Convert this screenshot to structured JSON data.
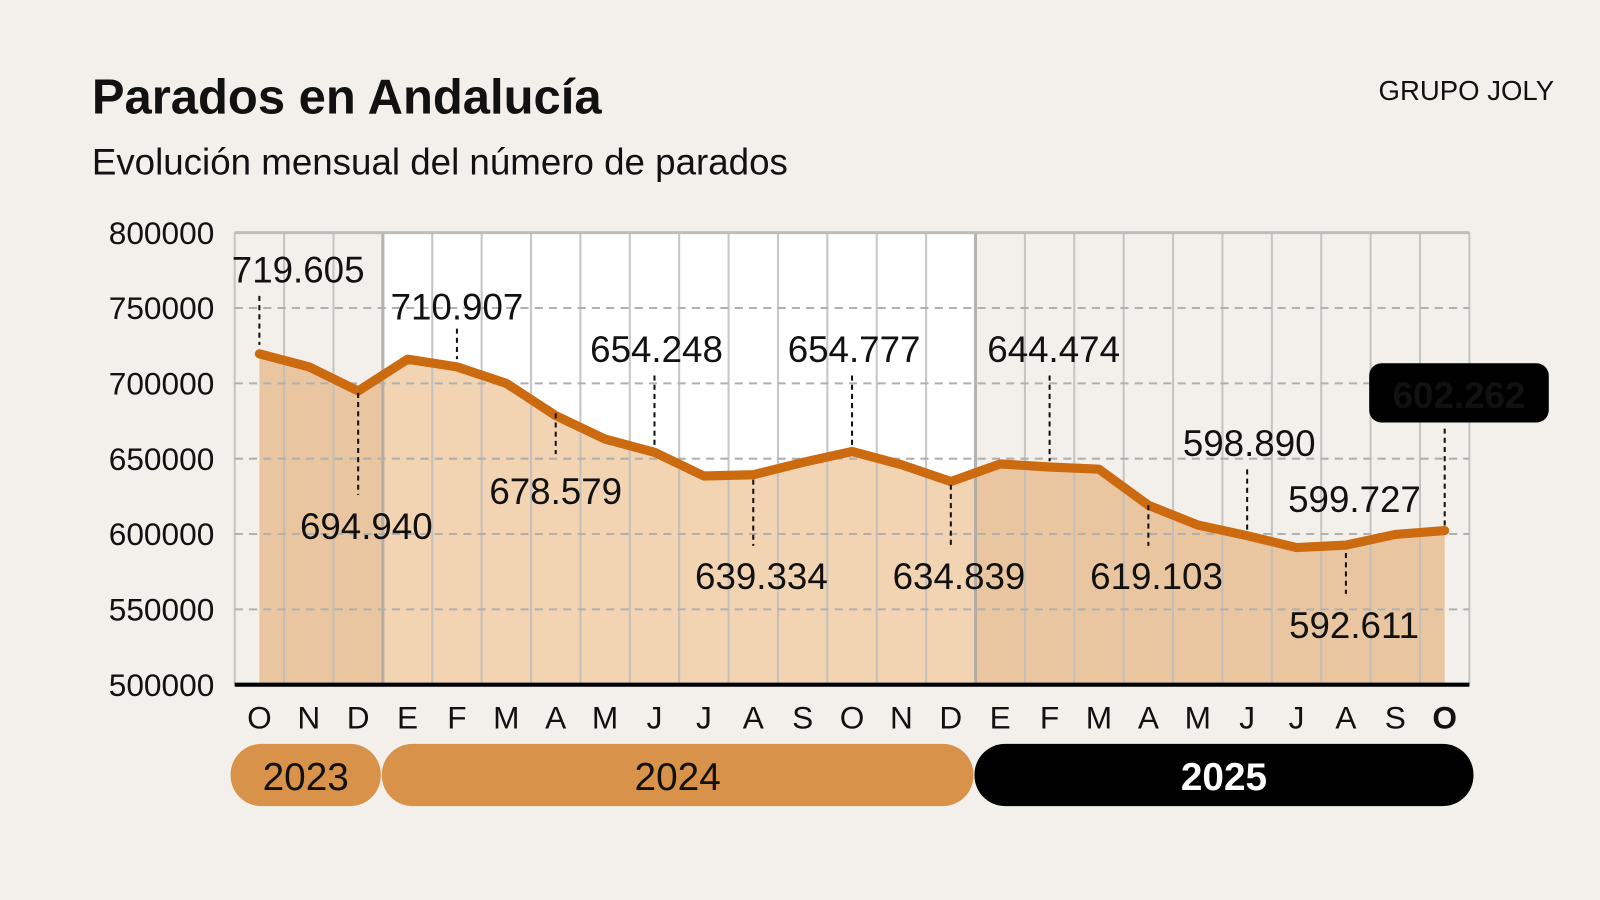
{
  "header": {
    "title": "Parados en Andalucía",
    "subtitle": "Evolución mensual del número de parados",
    "brand": "GRUPO JOLY"
  },
  "chart_data": {
    "type": "area",
    "title": "Parados en Andalucía",
    "subtitle": "Evolución mensual del número de parados",
    "xlabel": "",
    "ylabel": "",
    "ylim": [
      500000,
      800000
    ],
    "yticks": [
      "500000",
      "550000",
      "600000",
      "650000",
      "700000",
      "750000",
      "800000"
    ],
    "grid": true,
    "categories": [
      "O",
      "N",
      "D",
      "E",
      "F",
      "M",
      "A",
      "M",
      "J",
      "J",
      "A",
      "S",
      "O",
      "N",
      "D",
      "E",
      "F",
      "M",
      "A",
      "M",
      "J",
      "J",
      "A",
      "S",
      "O"
    ],
    "years": [
      {
        "label": "2023",
        "months": 3,
        "color": "#d9924a",
        "text_color": "#111111"
      },
      {
        "label": "2024",
        "months": 12,
        "color": "#d9924a",
        "text_color": "#111111"
      },
      {
        "label": "2025",
        "months": 10,
        "color": "#000000",
        "text_color": "#ffffff"
      }
    ],
    "values": [
      719605,
      711000,
      694940,
      716000,
      710907,
      700000,
      678579,
      663000,
      654248,
      638500,
      639334,
      647500,
      654777,
      646000,
      634839,
      646500,
      644474,
      643000,
      619103,
      606000,
      598890,
      591000,
      592611,
      599727,
      602262
    ],
    "data_labels": [
      {
        "index": 0,
        "text": "719.605"
      },
      {
        "index": 2,
        "text": "694.940"
      },
      {
        "index": 4,
        "text": "710.907"
      },
      {
        "index": 6,
        "text": "678.579"
      },
      {
        "index": 8,
        "text": "654.248"
      },
      {
        "index": 10,
        "text": "639.334"
      },
      {
        "index": 12,
        "text": "654.777"
      },
      {
        "index": 14,
        "text": "634.839"
      },
      {
        "index": 16,
        "text": "644.474"
      },
      {
        "index": 18,
        "text": "619.103"
      },
      {
        "index": 20,
        "text": "598.890"
      },
      {
        "index": 22,
        "text": "592.611"
      },
      {
        "index": 23,
        "text": "599.727"
      },
      {
        "index": 24,
        "text": "602.262",
        "highlight": true
      }
    ],
    "colors": {
      "line": "#cc6a10",
      "area_shaded": "#eac6a0",
      "area_highlight": "#f2d3b2",
      "plot_bg_shaded": "#f3f0eb",
      "plot_bg_highlight": "#ffffff",
      "grid": "#bdbdbd"
    }
  }
}
